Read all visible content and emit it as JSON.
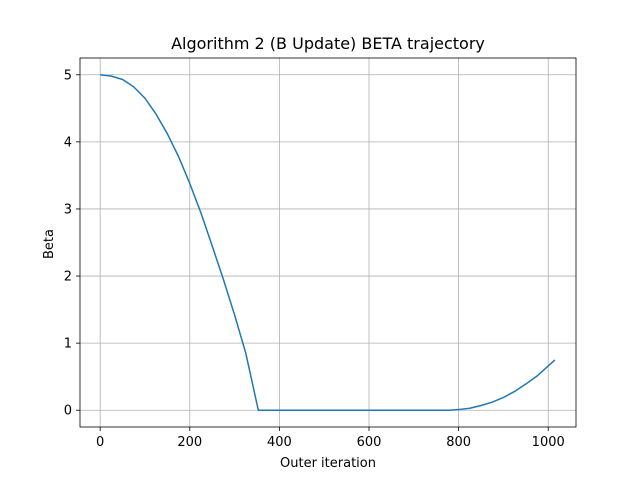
{
  "chart_data": {
    "type": "line",
    "title": "Algorithm 2 (B Update) BETA trajectory",
    "xlabel": "Outer iteration",
    "ylabel": "Beta",
    "xlim": [
      -45,
      1062
    ],
    "ylim": [
      -0.25,
      5.25
    ],
    "xticks": [
      0,
      200,
      400,
      600,
      800,
      1000
    ],
    "yticks": [
      0,
      1,
      2,
      3,
      4,
      5
    ],
    "grid": true,
    "series": [
      {
        "color": "#1f77b4",
        "x": [
          0,
          25,
          50,
          75,
          100,
          125,
          150,
          175,
          200,
          225,
          250,
          275,
          300,
          325,
          353,
          400,
          500,
          600,
          700,
          780,
          800,
          825,
          850,
          875,
          900,
          925,
          950,
          975,
          1000,
          1015
        ],
        "y": [
          5.0,
          4.98,
          4.93,
          4.82,
          4.65,
          4.41,
          4.12,
          3.78,
          3.38,
          2.94,
          2.45,
          1.95,
          1.42,
          0.85,
          0.0,
          0.0,
          0.0,
          0.0,
          0.0,
          0.0,
          0.01,
          0.03,
          0.07,
          0.12,
          0.19,
          0.28,
          0.39,
          0.51,
          0.66,
          0.75
        ]
      }
    ]
  }
}
